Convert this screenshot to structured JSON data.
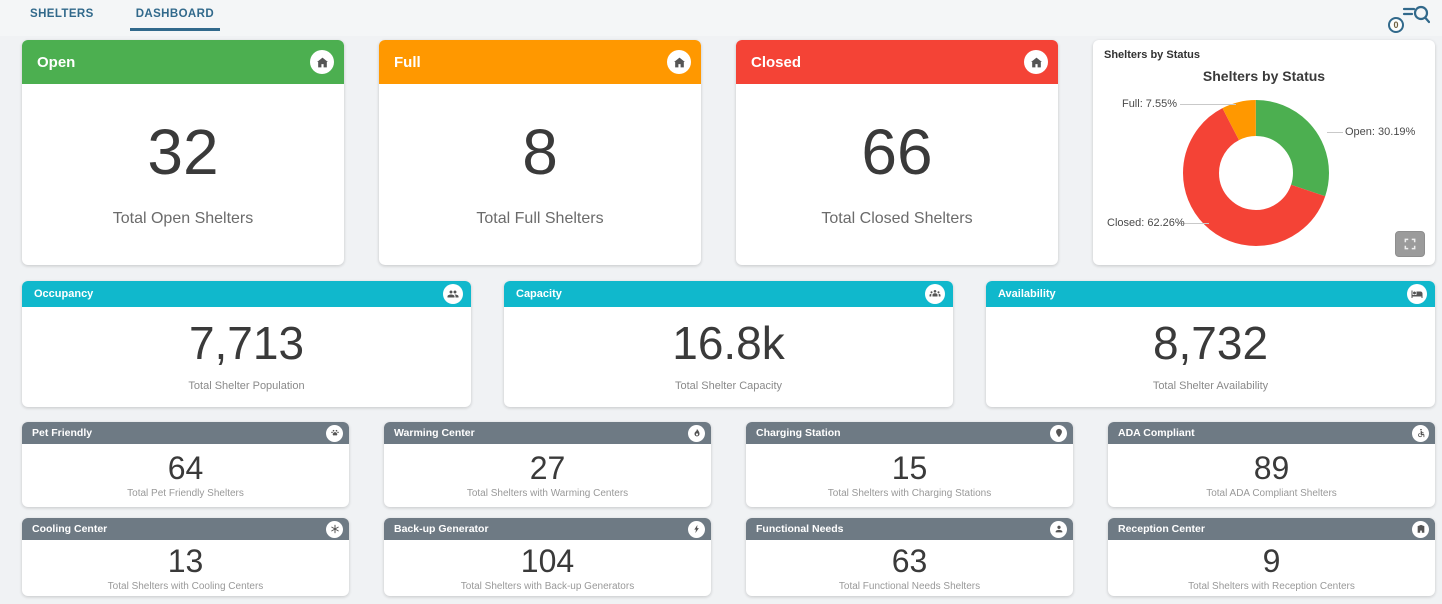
{
  "tabs": {
    "shelters": "SHELTERS",
    "dashboard": "DASHBOARD"
  },
  "toolbar": {
    "badge_count": "0"
  },
  "colors": {
    "open_green": "#4caf50",
    "full_orange": "#ff9800",
    "closed_red": "#f44336",
    "metric_teal": "#10b8cc",
    "feature_gray": "#6e7a84",
    "tab_blue": "#31698b"
  },
  "status_cards": [
    {
      "title": "Open",
      "value": "32",
      "subtitle": "Total Open Shelters",
      "color": "#4caf50"
    },
    {
      "title": "Full",
      "value": "8",
      "subtitle": "Total Full Shelters",
      "color": "#ff9800"
    },
    {
      "title": "Closed",
      "value": "66",
      "subtitle": "Total Closed Shelters",
      "color": "#f44336"
    }
  ],
  "chart_card": {
    "title": "Shelters by Status"
  },
  "chart_data": {
    "type": "pie",
    "subtype": "donut",
    "title": "Shelters by Status",
    "start_angle": "top",
    "direction": "clockwise",
    "slices": [
      {
        "name": "Open",
        "percent": 30.19,
        "label": "Open: 30.19%",
        "color": "#4caf50"
      },
      {
        "name": "Closed",
        "percent": 62.26,
        "label": "Closed: 62.26%",
        "color": "#f44336"
      },
      {
        "name": "Full",
        "percent": 7.55,
        "label": "Full: 7.55%",
        "color": "#ff9800"
      }
    ],
    "legend_position": "outside-labels-with-leader-lines"
  },
  "metric_cards": [
    {
      "title": "Occupancy",
      "value": "7,713",
      "subtitle": "Total Shelter Population",
      "color": "#10b8cc"
    },
    {
      "title": "Capacity",
      "value": "16.8k",
      "subtitle": "Total Shelter Capacity",
      "color": "#10b8cc"
    },
    {
      "title": "Availability",
      "value": "8,732",
      "subtitle": "Total Shelter Availability",
      "color": "#10b8cc"
    }
  ],
  "feature_cards": [
    {
      "title": "Pet Friendly",
      "value": "64",
      "subtitle": "Total Pet Friendly Shelters",
      "color": "#6e7a84"
    },
    {
      "title": "Warming Center",
      "value": "27",
      "subtitle": "Total Shelters with Warming Centers",
      "color": "#6e7a84"
    },
    {
      "title": "Charging Station",
      "value": "15",
      "subtitle": "Total Shelters with Charging Stations",
      "color": "#6e7a84"
    },
    {
      "title": "ADA Compliant",
      "value": "89",
      "subtitle": "Total ADA Compliant Shelters",
      "color": "#6e7a84"
    },
    {
      "title": "Cooling Center",
      "value": "13",
      "subtitle": "Total Shelters with Cooling Centers",
      "color": "#6e7a84"
    },
    {
      "title": "Back-up Generator",
      "value": "104",
      "subtitle": "Total Shelters with Back-up Generators",
      "color": "#6e7a84"
    },
    {
      "title": "Functional Needs",
      "value": "63",
      "subtitle": "Total Functional Needs Shelters",
      "color": "#6e7a84"
    },
    {
      "title": "Reception Center",
      "value": "9",
      "subtitle": "Total Shelters with Reception Centers",
      "color": "#6e7a84"
    }
  ]
}
